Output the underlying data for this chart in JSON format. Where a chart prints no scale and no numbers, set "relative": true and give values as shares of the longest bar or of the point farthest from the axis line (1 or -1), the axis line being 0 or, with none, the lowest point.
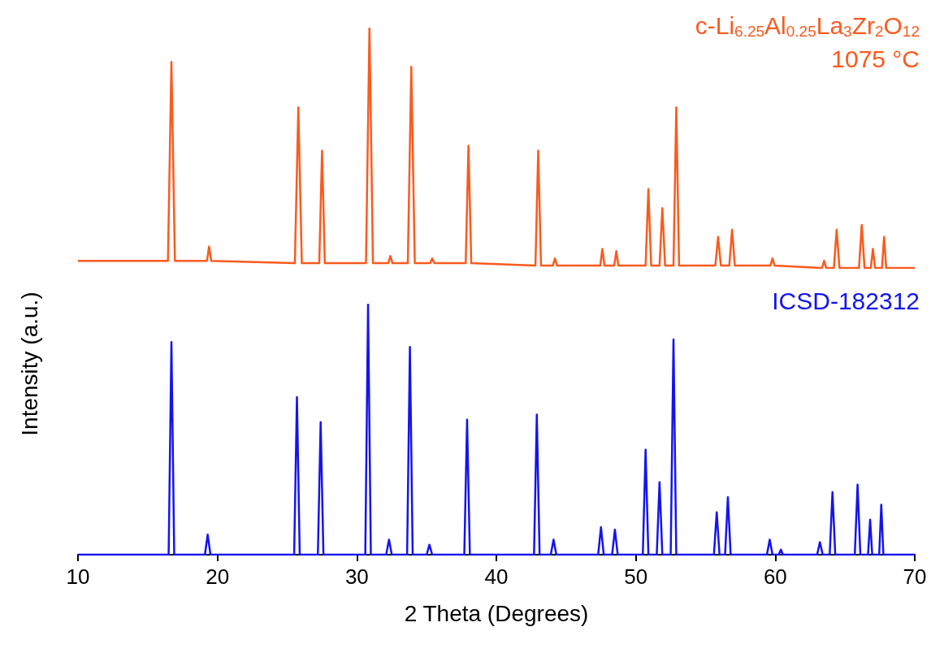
{
  "chart_data": [
    {
      "type": "line",
      "relative": true,
      "tick_labels": false,
      "xlim": [
        10,
        70
      ],
      "annotations": [
        "1075 °C"
      ],
      "series": [
        {
          "name": "c-Li$_{6.25}$Al$_{0.25}$La$_{3}$Zr$_{2}$O$_{12}$",
          "color": "#fb5a1e",
          "x": [
            10,
            16.45,
            16.7,
            16.95,
            19.25,
            19.4,
            19.55,
            25.55,
            25.8,
            26.05,
            27.3,
            27.5,
            27.7,
            30.65,
            30.9,
            31.15,
            32.25,
            32.4,
            32.55,
            33.65,
            33.9,
            34.15,
            35.25,
            35.4,
            35.55,
            37.8,
            38.0,
            38.2,
            42.8,
            43.0,
            43.2,
            44.05,
            44.2,
            44.35,
            47.45,
            47.6,
            47.75,
            48.45,
            48.6,
            48.75,
            50.7,
            50.9,
            51.1,
            51.7,
            51.9,
            52.1,
            52.7,
            52.9,
            53.1,
            55.7,
            55.9,
            56.1,
            56.7,
            56.9,
            57.1,
            59.65,
            59.8,
            59.95,
            63.35,
            63.5,
            63.65,
            64.2,
            64.4,
            64.6,
            66.0,
            66.2,
            66.4,
            66.85,
            67.0,
            67.15,
            67.65,
            67.8,
            67.95,
            70
          ],
          "values": [
            0.03,
            0.03,
            0.86,
            0.03,
            0.03,
            0.09,
            0.03,
            0.02,
            0.67,
            0.02,
            0.02,
            0.49,
            0.02,
            0.02,
            1,
            0.02,
            0.02,
            0.05,
            0.02,
            0.02,
            0.84,
            0.02,
            0.02,
            0.04,
            0.02,
            0.02,
            0.51,
            0.02,
            0.01,
            0.49,
            0.01,
            0.01,
            0.04,
            0.01,
            0.01,
            0.08,
            0.01,
            0.01,
            0.07,
            0.01,
            0.01,
            0.33,
            0.01,
            0.01,
            0.25,
            0.01,
            0.01,
            0.67,
            0.01,
            0.01,
            0.13,
            0.01,
            0.01,
            0.16,
            0.01,
            0.01,
            0.04,
            0.01,
            0,
            0.03,
            0,
            0,
            0.16,
            0,
            0,
            0.18,
            0,
            0,
            0.08,
            0,
            0,
            0.13,
            0,
            0
          ]
        }
      ]
    },
    {
      "type": "line",
      "relative": true,
      "tick_labels": "x",
      "xlim": [
        10,
        70
      ],
      "xticks": [
        10,
        20,
        30,
        40,
        50,
        60,
        70
      ],
      "xlabel": "2 Theta (Degrees)",
      "ylabel": "Intensity (a.u.)",
      "series": [
        {
          "name": "ICSD-182312",
          "color": "#1414f0",
          "x": [
            10,
            16.5,
            16.7,
            16.9,
            19.1,
            19.3,
            19.5,
            25.5,
            25.7,
            25.9,
            27.2,
            27.4,
            27.6,
            30.6,
            30.8,
            31.0,
            32.1,
            32.3,
            32.5,
            33.6,
            33.8,
            34.0,
            35.0,
            35.2,
            35.4,
            37.7,
            37.9,
            38.1,
            42.7,
            42.9,
            43.1,
            43.9,
            44.1,
            44.3,
            47.3,
            47.5,
            47.7,
            48.3,
            48.5,
            48.7,
            50.5,
            50.7,
            50.9,
            51.5,
            51.7,
            51.9,
            52.5,
            52.7,
            52.9,
            55.6,
            55.8,
            56.0,
            56.4,
            56.6,
            56.8,
            59.4,
            59.6,
            59.8,
            60.25,
            60.4,
            60.55,
            63.0,
            63.2,
            63.4,
            63.9,
            64.1,
            64.3,
            65.7,
            65.9,
            66.1,
            66.65,
            66.8,
            66.95,
            67.45,
            67.6,
            67.75,
            70
          ],
          "values": [
            0,
            0,
            0.85,
            0,
            0,
            0.08,
            0,
            0,
            0.63,
            0,
            0,
            0.53,
            0,
            0,
            1,
            0,
            0,
            0.06,
            0,
            0,
            0.83,
            0,
            0,
            0.04,
            0,
            0,
            0.54,
            0,
            0,
            0.56,
            0,
            0,
            0.06,
            0,
            0,
            0.11,
            0,
            0,
            0.1,
            0,
            0,
            0.42,
            0,
            0,
            0.29,
            0,
            0,
            0.86,
            0,
            0,
            0.17,
            0,
            0,
            0.23,
            0,
            0,
            0.06,
            0,
            0,
            0.02,
            0,
            0,
            0.05,
            0,
            0,
            0.25,
            0,
            0,
            0.28,
            0,
            0,
            0.14,
            0,
            0,
            0.2,
            0,
            0
          ]
        }
      ]
    }
  ]
}
